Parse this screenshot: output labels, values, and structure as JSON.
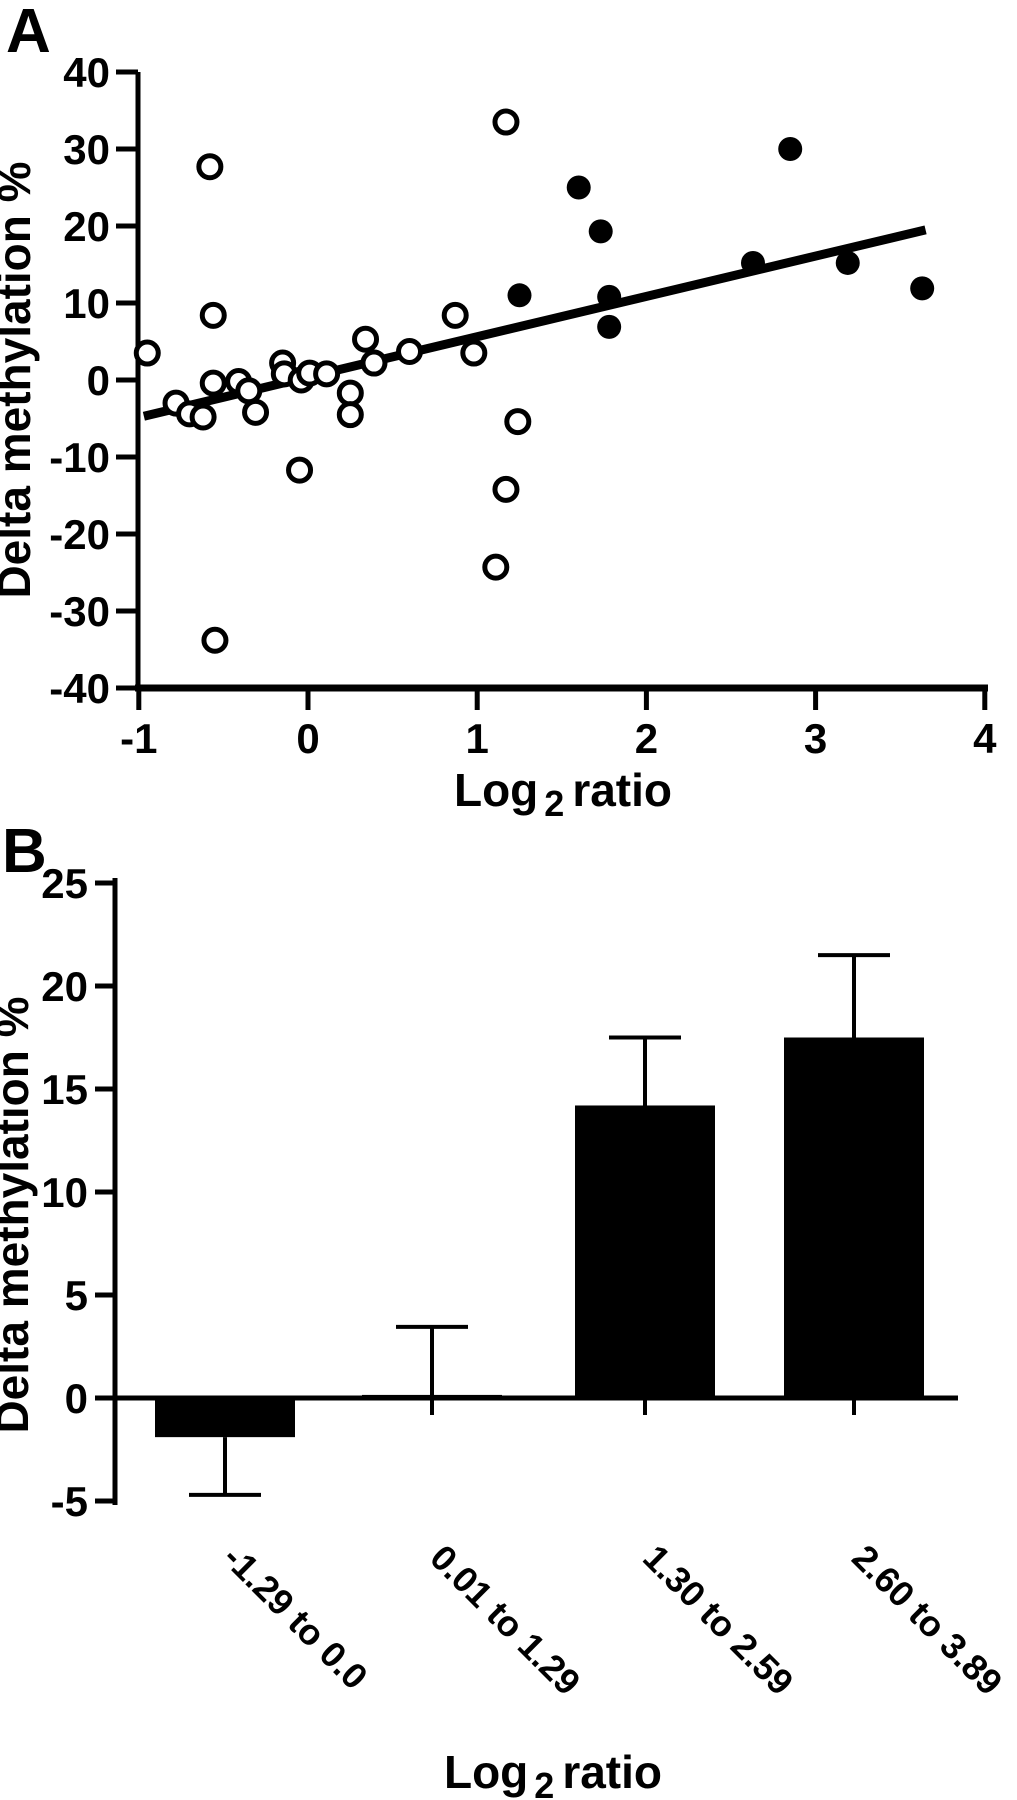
{
  "figure": {
    "background": "#ffffff",
    "ink": "#000000"
  },
  "panels": [
    {
      "label": "A"
    },
    {
      "label": "B"
    }
  ],
  "chart_data": [
    {
      "type": "scatter",
      "panel": "A",
      "title": "",
      "xlabel_parts": {
        "main": "Log",
        "sub": "2",
        "rest": "ratio"
      },
      "ylabel": "Delta methylation %",
      "xlim": [
        -1,
        4
      ],
      "ylim": [
        -40,
        40
      ],
      "xticks": [
        -1,
        0,
        1,
        2,
        3,
        4
      ],
      "yticks": [
        40,
        30,
        20,
        10,
        0,
        -10,
        -20,
        -30,
        -40
      ],
      "grid": false,
      "series": [
        {
          "name": "open circles",
          "marker": "open",
          "points": [
            [
              -0.95,
              3.5
            ],
            [
              -0.78,
              -3.0
            ],
            [
              -0.7,
              -4.4
            ],
            [
              -0.62,
              -4.8
            ],
            [
              -0.58,
              27.7
            ],
            [
              -0.56,
              8.4
            ],
            [
              -0.56,
              -0.4
            ],
            [
              -0.55,
              -33.8
            ],
            [
              -0.41,
              -0.2
            ],
            [
              -0.35,
              -1.4
            ],
            [
              -0.31,
              -4.2
            ],
            [
              -0.15,
              2.2
            ],
            [
              -0.14,
              0.8
            ],
            [
              -0.05,
              -11.7
            ],
            [
              -0.04,
              0.0
            ],
            [
              0.01,
              0.9
            ],
            [
              0.11,
              0.8
            ],
            [
              0.25,
              -1.7
            ],
            [
              0.25,
              -4.5
            ],
            [
              0.34,
              5.3
            ],
            [
              0.39,
              2.2
            ],
            [
              0.6,
              3.7
            ],
            [
              0.87,
              8.4
            ],
            [
              0.98,
              3.5
            ],
            [
              1.17,
              33.5
            ],
            [
              1.11,
              -24.3
            ],
            [
              1.17,
              -14.2
            ],
            [
              1.24,
              -5.4
            ]
          ]
        },
        {
          "name": "filled circles",
          "marker": "filled",
          "points": [
            [
              1.25,
              11.0
            ],
            [
              1.6,
              25.0
            ],
            [
              1.73,
              19.3
            ],
            [
              1.78,
              10.8
            ],
            [
              1.78,
              6.9
            ],
            [
              2.63,
              15.2
            ],
            [
              2.85,
              30.0
            ],
            [
              3.19,
              15.2
            ],
            [
              3.63,
              11.9
            ]
          ]
        }
      ],
      "trend_line": {
        "x1": -0.97,
        "y1": -4.7,
        "x2": 3.65,
        "y2": 19.5
      }
    },
    {
      "type": "bar",
      "panel": "B",
      "title": "",
      "xlabel_parts": {
        "main": "Log",
        "sub": "2",
        "rest": "ratio"
      },
      "ylabel": "Delta methylation %",
      "ylim": [
        -5,
        25
      ],
      "yticks": [
        25,
        20,
        15,
        10,
        5,
        0,
        -5
      ],
      "grid": false,
      "categories": [
        "-1.29 to 0.0",
        "0.01 to 1.29",
        "1.30 to 2.59",
        "2.60 to 3.89"
      ],
      "values": [
        -1.9,
        0.15,
        14.2,
        17.5
      ],
      "error_bars": [
        {
          "dir": "down",
          "mag": 2.8
        },
        {
          "dir": "up",
          "mag": 3.3,
          "line_below_to": -0.8
        },
        {
          "dir": "up",
          "mag": 3.3
        },
        {
          "dir": "up",
          "mag": 4.0
        }
      ],
      "bar_color": "#000000"
    }
  ]
}
